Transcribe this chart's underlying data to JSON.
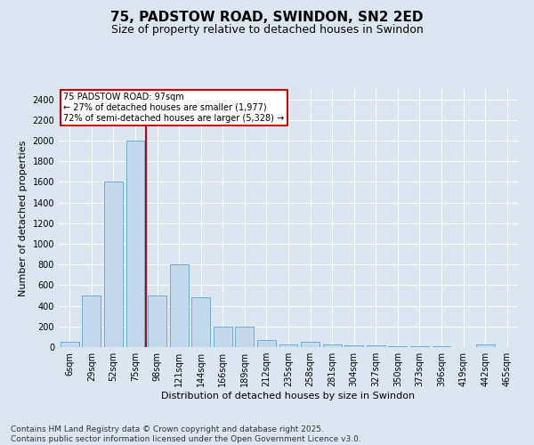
{
  "title1": "75, PADSTOW ROAD, SWINDON, SN2 2ED",
  "title2": "Size of property relative to detached houses in Swindon",
  "xlabel": "Distribution of detached houses by size in Swindon",
  "ylabel": "Number of detached properties",
  "categories": [
    "6sqm",
    "29sqm",
    "52sqm",
    "75sqm",
    "98sqm",
    "121sqm",
    "144sqm",
    "166sqm",
    "189sqm",
    "212sqm",
    "235sqm",
    "258sqm",
    "281sqm",
    "304sqm",
    "327sqm",
    "350sqm",
    "373sqm",
    "396sqm",
    "419sqm",
    "442sqm",
    "465sqm"
  ],
  "values": [
    50,
    500,
    1600,
    2000,
    500,
    800,
    480,
    200,
    200,
    70,
    25,
    50,
    30,
    20,
    15,
    12,
    8,
    5,
    3,
    30,
    3
  ],
  "bar_color": "#c5d8ec",
  "bar_edge_color": "#6aaed6",
  "background_color": "#dce6f1",
  "grid_color": "#ffffff",
  "annotation_text": "75 PADSTOW ROAD: 97sqm\n← 27% of detached houses are smaller (1,977)\n72% of semi-detached houses are larger (5,328) →",
  "annotation_box_color": "#ffffff",
  "annotation_box_edge": "#cc0000",
  "vline_color": "#cc0000",
  "vline_pos": 3.5,
  "ylim": [
    0,
    2500
  ],
  "yticks": [
    0,
    200,
    400,
    600,
    800,
    1000,
    1200,
    1400,
    1600,
    1800,
    2000,
    2200,
    2400
  ],
  "footer": "Contains HM Land Registry data © Crown copyright and database right 2025.\nContains public sector information licensed under the Open Government Licence v3.0.",
  "title_fontsize": 11,
  "subtitle_fontsize": 9,
  "axis_label_fontsize": 8,
  "tick_fontsize": 7,
  "footer_fontsize": 6.5
}
